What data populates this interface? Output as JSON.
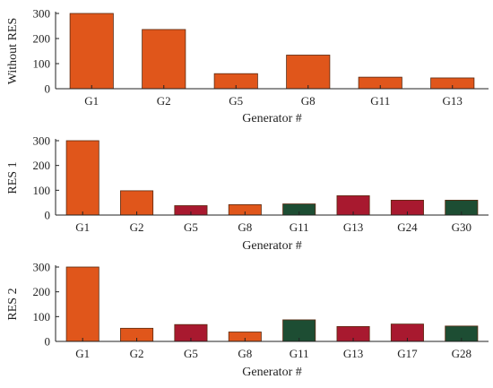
{
  "colors": {
    "orange": "#E0561B",
    "crimson": "#A8192F",
    "green": "#1D4D33"
  },
  "chart_data": [
    {
      "type": "bar",
      "ylabel": "Without RES",
      "xlabel": "Generator #",
      "ylim": [
        0,
        300
      ],
      "yticks": [
        0,
        100,
        200,
        300
      ],
      "grid": false,
      "categories": [
        "G1",
        "G2",
        "G5",
        "G8",
        "G11",
        "G13"
      ],
      "values": [
        300,
        236,
        60,
        134,
        46,
        43
      ],
      "bar_colors": [
        "orange",
        "orange",
        "orange",
        "orange",
        "orange",
        "orange"
      ]
    },
    {
      "type": "bar",
      "ylabel": "RES 1",
      "xlabel": "Generator #",
      "ylim": [
        0,
        300
      ],
      "yticks": [
        0,
        100,
        200,
        300
      ],
      "grid": false,
      "categories": [
        "G1",
        "G2",
        "G5",
        "G8",
        "G11",
        "G13",
        "G24",
        "G30"
      ],
      "values": [
        300,
        98,
        38,
        42,
        45,
        78,
        60,
        60
      ],
      "bar_colors": [
        "orange",
        "orange",
        "crimson",
        "orange",
        "green",
        "crimson",
        "crimson",
        "green"
      ]
    },
    {
      "type": "bar",
      "ylabel": "RES 2",
      "xlabel": "Generator #",
      "ylim": [
        0,
        300
      ],
      "yticks": [
        0,
        100,
        200,
        300
      ],
      "grid": false,
      "categories": [
        "G1",
        "G2",
        "G5",
        "G8",
        "G11",
        "G13",
        "G17",
        "G28"
      ],
      "values": [
        300,
        53,
        68,
        38,
        87,
        60,
        70,
        62
      ],
      "bar_colors": [
        "orange",
        "orange",
        "crimson",
        "orange",
        "green",
        "crimson",
        "crimson",
        "green"
      ]
    }
  ]
}
